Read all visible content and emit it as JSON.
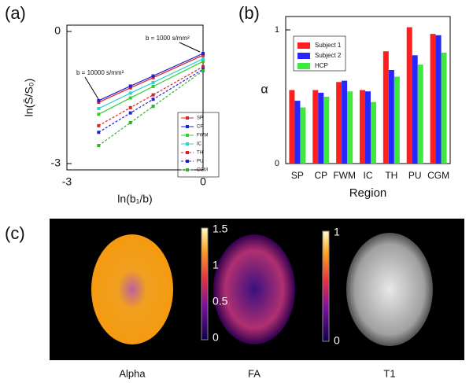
{
  "chart_data": [
    {
      "type": "line",
      "label": "(a)",
      "x_label": "ln(b₁/b)",
      "y_label": "ln(S̄/S₀)",
      "annotations": [
        "b = 1000 s/mm²",
        "b = 10000 s/mm²"
      ],
      "x": [
        -2.3,
        -1.6,
        -1.1,
        0
      ],
      "xlim": [
        -3,
        0
      ],
      "xticks": [
        -3,
        0
      ],
      "ylim": [
        -3,
        0
      ],
      "yticks": [
        -3,
        0
      ],
      "legend": "lower right",
      "series": [
        {
          "name": "SP",
          "color": "#e02020",
          "dash": false,
          "values": [
            -1.61,
            -1.28,
            -1.05,
            -0.54
          ]
        },
        {
          "name": "CP",
          "color": "#2020d0",
          "dash": false,
          "values": [
            -1.57,
            -1.24,
            -1.01,
            -0.5
          ]
        },
        {
          "name": "FWM",
          "color": "#30d030",
          "dash": false,
          "values": [
            -1.88,
            -1.51,
            -1.25,
            -0.68
          ]
        },
        {
          "name": "IC",
          "color": "#30d0d0",
          "dash": false,
          "values": [
            -1.75,
            -1.4,
            -1.16,
            -0.62
          ]
        },
        {
          "name": "TH",
          "color": "#e02020",
          "dash": true,
          "values": [
            -2.14,
            -1.73,
            -1.44,
            -0.8
          ]
        },
        {
          "name": "PU",
          "color": "#2020d0",
          "dash": true,
          "values": [
            -2.29,
            -1.85,
            -1.54,
            -0.86
          ]
        },
        {
          "name": "CGM",
          "color": "#30b030",
          "dash": true,
          "values": [
            -2.59,
            -2.07,
            -1.7,
            -0.89
          ]
        }
      ]
    },
    {
      "type": "bar",
      "label": "(b)",
      "x_label": "Region",
      "y_label": "α",
      "categories": [
        "SP",
        "CP",
        "FWM",
        "IC",
        "TH",
        "PU",
        "CGM"
      ],
      "ylim": [
        0,
        1.1
      ],
      "yticks": [
        0,
        1
      ],
      "legend": "upper left",
      "series": [
        {
          "name": "Subject 1",
          "color": "#ff1f1f",
          "values": [
            0.55,
            0.55,
            0.61,
            0.55,
            0.84,
            1.02,
            0.97
          ]
        },
        {
          "name": "Subject 2",
          "color": "#2626ff",
          "values": [
            0.47,
            0.53,
            0.62,
            0.54,
            0.7,
            0.81,
            0.96
          ]
        },
        {
          "name": "HCP",
          "color": "#3ee83e",
          "values": [
            0.42,
            0.5,
            0.54,
            0.46,
            0.65,
            0.74,
            0.83
          ]
        }
      ]
    }
  ],
  "panel_c": {
    "label": "(c)",
    "images": [
      {
        "caption": "Alpha",
        "colorbar_lim": [
          0,
          1.5
        ],
        "colorbar_ticks": [
          0,
          0.5,
          1,
          1.5
        ]
      },
      {
        "caption": "FA",
        "colorbar_lim": [
          0,
          1
        ],
        "colorbar_ticks": [
          0,
          1
        ]
      },
      {
        "caption": "T1"
      }
    ]
  }
}
